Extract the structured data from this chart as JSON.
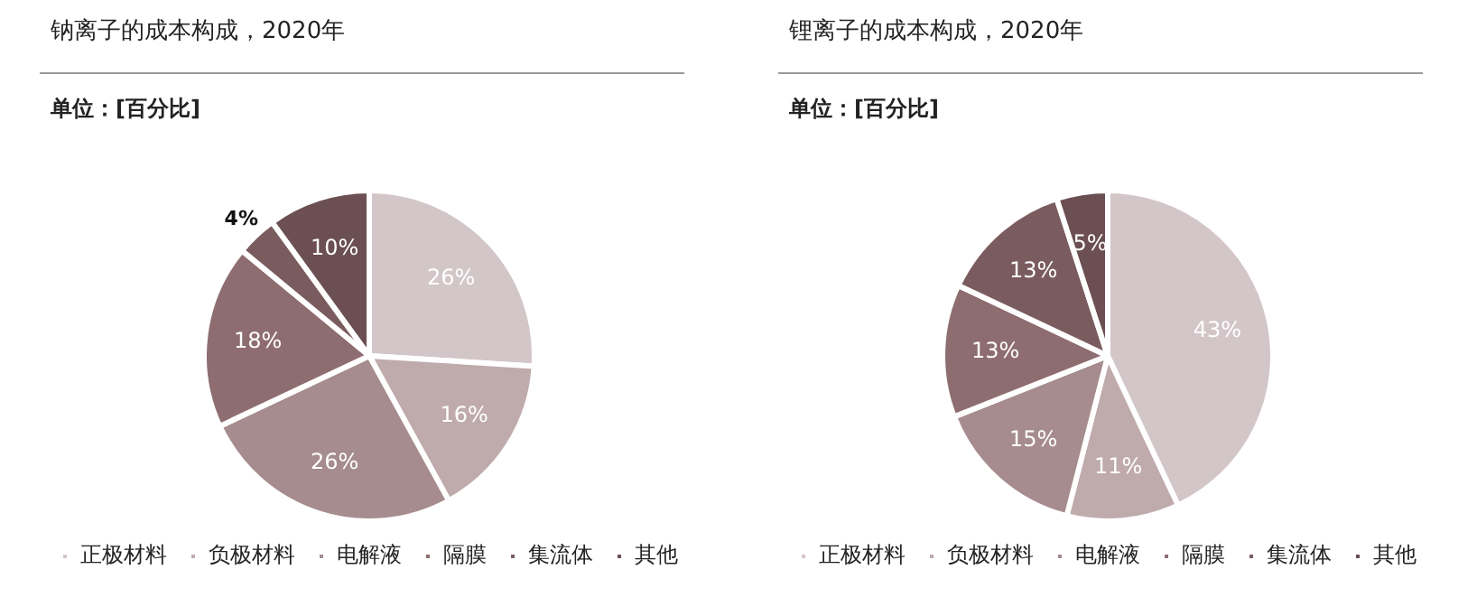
{
  "chart_data": [
    {
      "type": "pie",
      "title": "钠离子的成本构成，2020年",
      "subtitle": "单位：[百分比]",
      "categories": [
        "正极材料",
        "负极材料",
        "电解液",
        "隔膜",
        "集流体",
        "其他"
      ],
      "values": [
        26,
        16,
        26,
        18,
        4,
        10
      ],
      "value_labels": [
        "26%",
        "16%",
        "26%",
        "18%",
        "4%",
        "10%"
      ],
      "colors": [
        "#d3c6c8",
        "#bfaaac",
        "#a68c8e",
        "#8e6d70",
        "#7a5c5f",
        "#6b4f52"
      ],
      "legend": "bottom"
    },
    {
      "type": "pie",
      "title": "锂离子的成本构成，2020年",
      "subtitle": "单位：[百分比]",
      "categories": [
        "正极材料",
        "负极材料",
        "电解液",
        "隔膜",
        "集流体",
        "其他"
      ],
      "values": [
        43,
        11,
        15,
        13,
        13,
        5
      ],
      "value_labels": [
        "43%",
        "11%",
        "15%",
        "13%",
        "13%",
        "5%"
      ],
      "colors": [
        "#d3c6c8",
        "#bfaaac",
        "#a68c8e",
        "#8e6d70",
        "#7a5c5f",
        "#6b4f52"
      ],
      "legend": "bottom"
    }
  ]
}
